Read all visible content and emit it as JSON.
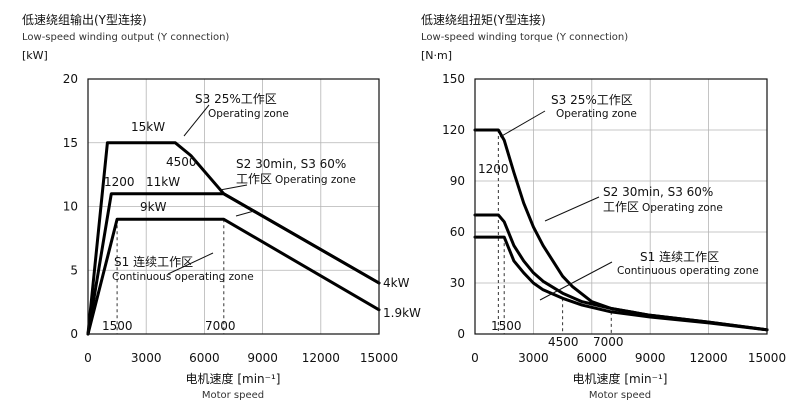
{
  "chart_data": [
    {
      "type": "line",
      "title": "低速绕组输出(Y型连接)",
      "subtitle": "Low-speed winding output (Y connection)",
      "ylabel": "[kW]",
      "xlabel": "电机速度 [min⁻¹]",
      "xlabel_sub": "Motor speed",
      "xlim": [
        0,
        15000
      ],
      "ylim": [
        0,
        20
      ],
      "xticks": [
        0,
        3000,
        6000,
        9000,
        12000,
        15000
      ],
      "yticks": [
        0,
        5,
        10,
        15,
        20
      ],
      "grid": true,
      "series": [
        {
          "name": "S3 25%",
          "points": [
            [
              0,
              0
            ],
            [
              1000,
              15
            ],
            [
              4500,
              15
            ],
            [
              5300,
              14
            ],
            [
              7000,
              11
            ],
            [
              15000,
              4
            ]
          ]
        },
        {
          "name": "S2 30min, S3 60%",
          "points": [
            [
              0,
              0
            ],
            [
              1200,
              11
            ],
            [
              7000,
              11
            ],
            [
              15000,
              4
            ]
          ]
        },
        {
          "name": "S1",
          "points": [
            [
              0,
              0
            ],
            [
              1500,
              9
            ],
            [
              7000,
              9
            ],
            [
              15000,
              1.9
            ]
          ]
        }
      ],
      "annotations": [
        {
          "id": "a-15kw",
          "text": "15kW"
        },
        {
          "id": "a-4500",
          "text": "4500"
        },
        {
          "id": "a-1200",
          "text": "1200"
        },
        {
          "id": "a-11kw",
          "text": "11kW"
        },
        {
          "id": "a-9kw",
          "text": "9kW"
        },
        {
          "id": "a-1500",
          "text": "1500"
        },
        {
          "id": "a-7000",
          "text": "7000"
        },
        {
          "id": "a-4kw",
          "text": "4kW"
        },
        {
          "id": "a-19kw",
          "text": "1.9kW"
        },
        {
          "id": "a-s3",
          "text": "S3 25%工作区"
        },
        {
          "id": "a-s3-en",
          "text": "Operating zone"
        },
        {
          "id": "a-s2",
          "text": "S2 30min, S3 60%"
        },
        {
          "id": "a-s2-zone",
          "text": "工作区"
        },
        {
          "id": "a-s2-en",
          "text": "Operating zone"
        },
        {
          "id": "a-s1",
          "text": "S1 连续工作区"
        },
        {
          "id": "a-s1-en",
          "text": "Continuous operating zone"
        }
      ]
    },
    {
      "type": "line",
      "title": "低速绕组扭矩(Y型连接)",
      "subtitle": "Low-speed winding torque (Y connection)",
      "ylabel": "[N·m]",
      "xlabel": "电机速度 [min⁻¹]",
      "xlabel_sub": "Motor speed",
      "xlim": [
        0,
        15000
      ],
      "ylim": [
        0,
        150
      ],
      "xticks": [
        0,
        3000,
        6000,
        9000,
        12000,
        15000
      ],
      "yticks": [
        0,
        30,
        60,
        90,
        120,
        150
      ],
      "grid": true,
      "series": [
        {
          "name": "S3 25%",
          "points": [
            [
              0,
              120
            ],
            [
              1200,
              120
            ],
            [
              1500,
              114
            ],
            [
              2000,
              95
            ],
            [
              2500,
              77
            ],
            [
              3000,
              63
            ],
            [
              3500,
              52
            ],
            [
              4000,
              43
            ],
            [
              4500,
              34
            ],
            [
              5000,
              28
            ],
            [
              6000,
              19
            ],
            [
              7000,
              15
            ],
            [
              9000,
              11
            ],
            [
              12000,
              7
            ],
            [
              15000,
              2.5
            ]
          ]
        },
        {
          "name": "S2 30min, S3 60%",
          "points": [
            [
              0,
              70
            ],
            [
              1200,
              70
            ],
            [
              1500,
              66
            ],
            [
              2000,
              52
            ],
            [
              2500,
              43
            ],
            [
              3000,
              36
            ],
            [
              3500,
              31
            ],
            [
              4500,
              24
            ],
            [
              5500,
              19
            ],
            [
              7000,
              15
            ],
            [
              9000,
              11
            ],
            [
              12000,
              7
            ],
            [
              15000,
              2.5
            ]
          ]
        },
        {
          "name": "S1",
          "points": [
            [
              0,
              57
            ],
            [
              1500,
              57
            ],
            [
              2000,
              43
            ],
            [
              2500,
              36
            ],
            [
              3000,
              30
            ],
            [
              3500,
              26
            ],
            [
              4500,
              21
            ],
            [
              5500,
              17
            ],
            [
              7000,
              13
            ],
            [
              9000,
              10
            ],
            [
              12000,
              6.5
            ],
            [
              15000,
              2.5
            ]
          ]
        }
      ],
      "annotations": [
        {
          "id": "b-1200",
          "text": "1200"
        },
        {
          "id": "b-1500",
          "text": "1500"
        },
        {
          "id": "b-4500",
          "text": "4500"
        },
        {
          "id": "b-7000",
          "text": "7000"
        },
        {
          "id": "b-s3",
          "text": "S3 25%工作区"
        },
        {
          "id": "b-s3-en",
          "text": "Operating zone"
        },
        {
          "id": "b-s2",
          "text": "S2 30min, S3 60%"
        },
        {
          "id": "b-s2-zone",
          "text": "工作区"
        },
        {
          "id": "b-s2-en",
          "text": "Operating zone"
        },
        {
          "id": "b-s1",
          "text": "S1 连续工作区"
        },
        {
          "id": "b-s1-en",
          "text": "Continuous operating zone"
        }
      ]
    }
  ]
}
